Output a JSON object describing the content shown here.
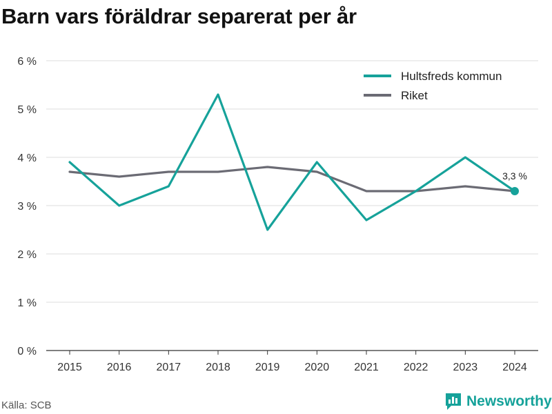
{
  "chart_data": {
    "type": "line",
    "title": "Barn vars föräldrar separerat per år",
    "x": [
      "2015",
      "2016",
      "2017",
      "2018",
      "2019",
      "2020",
      "2021",
      "2022",
      "2023",
      "2024"
    ],
    "series": [
      {
        "name": "Hultsfreds kommun",
        "color": "#16a29a",
        "values": [
          3.9,
          3.0,
          3.4,
          5.3,
          2.5,
          3.9,
          2.7,
          3.3,
          4.0,
          3.3
        ]
      },
      {
        "name": "Riket",
        "color": "#6b6b74",
        "values": [
          3.7,
          3.6,
          3.7,
          3.7,
          3.8,
          3.7,
          3.3,
          3.3,
          3.4,
          3.3
        ]
      }
    ],
    "yticks": [
      "0 %",
      "1 %",
      "2 %",
      "3 %",
      "4 %",
      "5 %",
      "6 %"
    ],
    "ylim": [
      0,
      6
    ],
    "grid": true,
    "legend_position": "top-right",
    "annotation": {
      "text": "3,3 %",
      "series": "Hultsfreds kommun",
      "x": "2024"
    }
  },
  "footer": {
    "source": "Källa: SCB",
    "brand": "Newsworthy"
  },
  "colors": {
    "accent": "#16a29a",
    "secondary": "#6b6b74"
  },
  "icons": {
    "brand": "bar-chart-logo-icon"
  }
}
